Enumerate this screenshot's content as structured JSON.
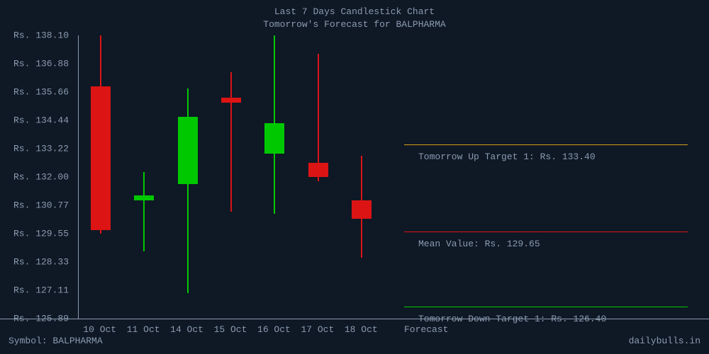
{
  "title1": "Last 7 Days Candlestick Chart",
  "title2": "Tomorrow's Forecast for BALPHARMA",
  "symbol_label": "Symbol: BALPHARMA",
  "forecast_label": "Forecast",
  "site": "dailybulls.in",
  "colors": {
    "background": "#0f1825",
    "text": "#8a9bb0",
    "up": "#00c800",
    "down": "#dc1414",
    "target_up": "#d4a017",
    "target_mean": "#dc1414",
    "target_down": "#00c800"
  },
  "chart": {
    "type": "candlestick",
    "ymin": 125.89,
    "ymax": 138.1,
    "y_ticks": [
      138.1,
      136.88,
      135.66,
      134.44,
      133.22,
      132.0,
      130.77,
      129.55,
      128.33,
      127.11,
      125.89
    ],
    "y_prefix": "Rs. ",
    "x_labels": [
      "10 Oct",
      "11 Oct",
      "14 Oct",
      "15 Oct",
      "16 Oct",
      "17 Oct",
      "18 Oct"
    ],
    "candle_width": 28,
    "wick_width": 2,
    "candles": [
      {
        "open": 135.9,
        "close": 129.7,
        "high": 138.1,
        "low": 129.55,
        "dir": "down"
      },
      {
        "open": 131.0,
        "close": 131.2,
        "high": 132.2,
        "low": 128.8,
        "dir": "up"
      },
      {
        "open": 131.7,
        "close": 134.6,
        "high": 135.8,
        "low": 127.0,
        "dir": "up"
      },
      {
        "open": 135.4,
        "close": 135.2,
        "high": 136.5,
        "low": 130.5,
        "dir": "down"
      },
      {
        "open": 133.0,
        "close": 134.3,
        "high": 138.1,
        "low": 130.4,
        "dir": "up"
      },
      {
        "open": 132.6,
        "close": 132.0,
        "high": 137.3,
        "low": 131.8,
        "dir": "down"
      },
      {
        "open": 131.0,
        "close": 130.2,
        "high": 132.9,
        "low": 128.5,
        "dir": "down"
      }
    ]
  },
  "targets": {
    "up": {
      "value": 133.4,
      "label": "Tomorrow Up Target 1: Rs. 133.40"
    },
    "mean": {
      "value": 129.65,
      "label": "Mean Value: Rs. 129.65"
    },
    "down": {
      "value": 126.4,
      "label": "Tomorrow Down Target 1: Rs. 126.40"
    }
  }
}
